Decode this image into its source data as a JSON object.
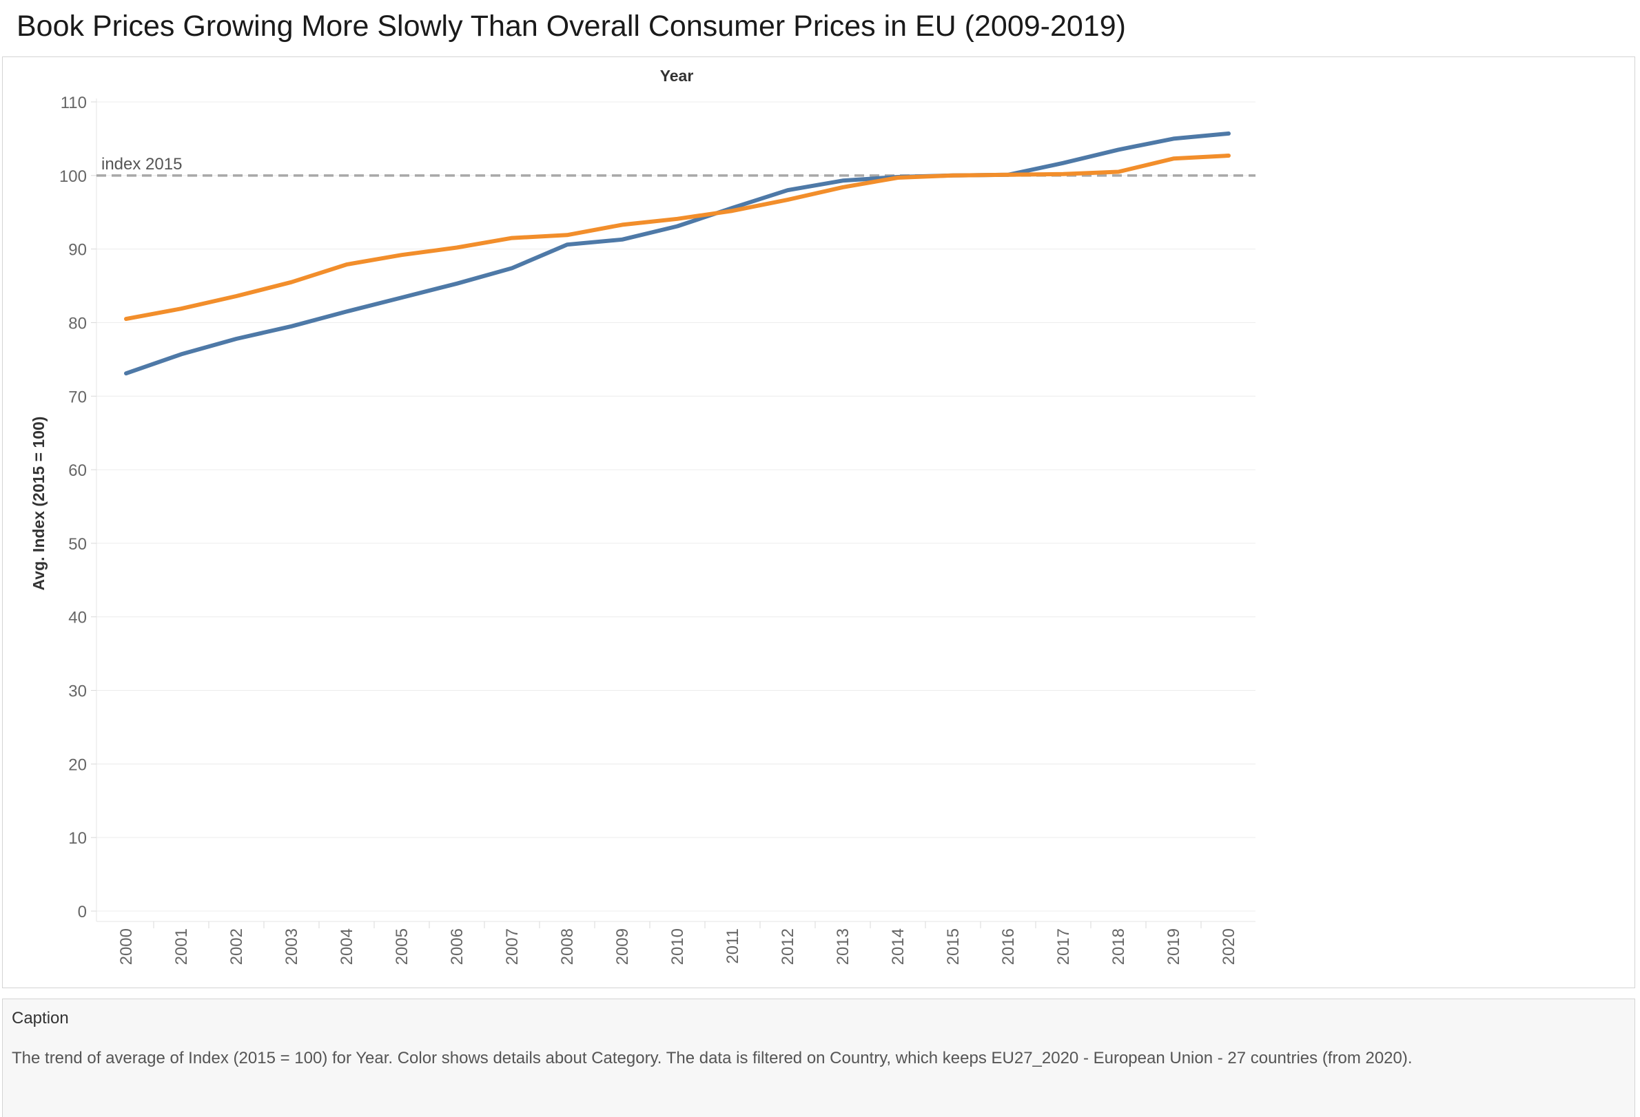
{
  "title": "Book Prices Growing More Slowly Than Overall Consumer Prices in EU (2009-2019)",
  "caption": {
    "title": "Caption",
    "text": "The trend of average of Index (2015 = 100) for Year.  Color shows details about Category. The data is filtered on Country, which keeps EU27_2020 - European Union - 27 countries (from 2020)."
  },
  "chart_data": {
    "type": "line",
    "xlabel": "Year",
    "ylabel": "Avg. Index (2015 = 100)",
    "ylim": [
      0,
      110
    ],
    "yticks": [
      0,
      10,
      20,
      30,
      40,
      50,
      60,
      70,
      80,
      90,
      100,
      110
    ],
    "grid": "horizontal",
    "x": [
      "2000",
      "2001",
      "2002",
      "2003",
      "2004",
      "2005",
      "2006",
      "2007",
      "2008",
      "2009",
      "2010",
      "2011",
      "2012",
      "2013",
      "2014",
      "2015",
      "2016",
      "2017",
      "2018",
      "2019",
      "2020"
    ],
    "series": [
      {
        "color": "#4e79a7",
        "values": [
          73.1,
          75.7,
          77.8,
          79.5,
          81.5,
          83.4,
          85.3,
          87.4,
          90.6,
          91.3,
          93.1,
          95.6,
          98.0,
          99.3,
          99.8,
          100.0,
          100.1,
          101.7,
          103.5,
          105.0,
          105.7
        ]
      },
      {
        "color": "#f28e2b",
        "values": [
          80.5,
          81.9,
          83.6,
          85.5,
          87.9,
          89.2,
          90.2,
          91.5,
          91.9,
          93.3,
          94.1,
          95.2,
          96.7,
          98.4,
          99.7,
          100.0,
          100.1,
          100.2,
          100.5,
          102.3,
          102.7
        ]
      }
    ],
    "reference_line": {
      "value": 100,
      "label": "index 2015",
      "color": "#a8a8a8"
    }
  }
}
